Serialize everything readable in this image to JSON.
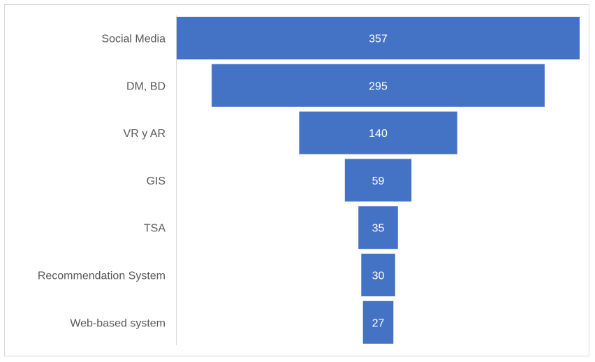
{
  "chart_data": {
    "type": "bar",
    "subtype": "funnel",
    "categories": [
      "Social Media",
      "DM, BD",
      "VR y AR",
      "GIS",
      "TSA",
      "Recommendation System",
      "Web-based system"
    ],
    "values": [
      357,
      295,
      140,
      59,
      35,
      30,
      27
    ],
    "title": "",
    "xlabel": "",
    "ylabel": "",
    "bar_color": "#4472C4",
    "data_labels": true,
    "legend": "none",
    "grid": false
  }
}
